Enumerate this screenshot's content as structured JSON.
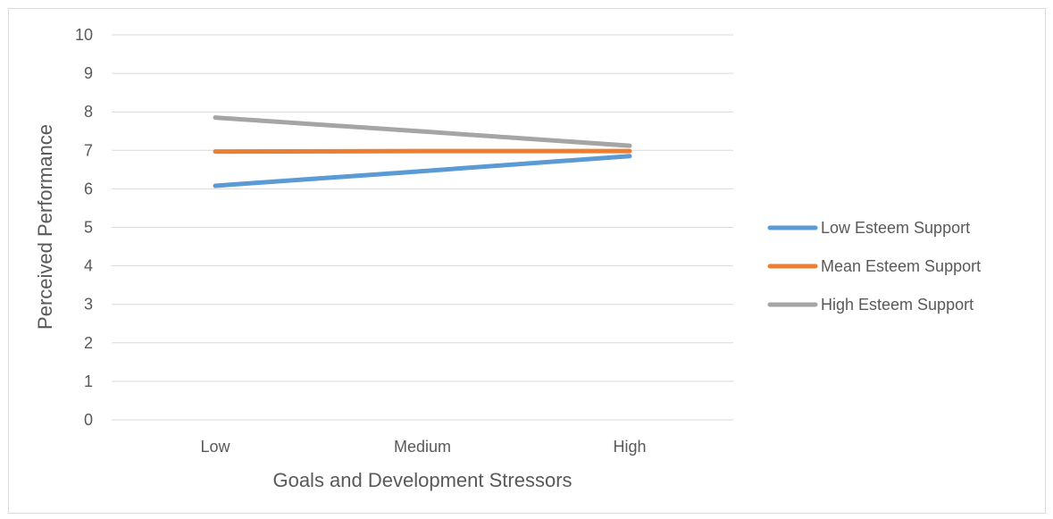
{
  "chart_data": {
    "type": "line",
    "title": "",
    "xlabel": "Goals and Development Stressors",
    "ylabel": "Perceived Performance",
    "categories": [
      "Low",
      "Medium",
      "High"
    ],
    "ylim": [
      0,
      10
    ],
    "yticks": [
      "0",
      "1",
      "2",
      "3",
      "4",
      "5",
      "6",
      "7",
      "8",
      "9",
      "10"
    ],
    "grid": true,
    "legend_position": "right",
    "series": [
      {
        "name": "Low Esteem Support",
        "color": "#5b9bd5",
        "values": [
          6.08,
          6.46,
          6.85
        ]
      },
      {
        "name": "Mean Esteem Support",
        "color": "#ed7d31",
        "values": [
          6.97,
          6.98,
          6.98
        ]
      },
      {
        "name": "High Esteem Support",
        "color": "#a5a5a5",
        "values": [
          7.85,
          7.49,
          7.12
        ]
      }
    ]
  }
}
